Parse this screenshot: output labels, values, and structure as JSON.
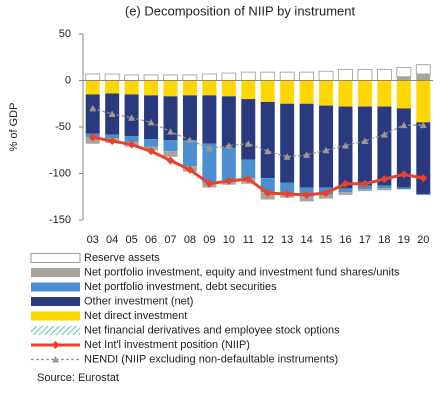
{
  "chart_data": {
    "type": "bar",
    "title": "(e) Decomposition of NIIP by instrument",
    "y_label": "% of GDP",
    "source": "Source: Eurostat",
    "categories": [
      "03",
      "04",
      "05",
      "06",
      "07",
      "08",
      "09",
      "10",
      "11",
      "12",
      "13",
      "14",
      "15",
      "16",
      "17",
      "18",
      "19",
      "20"
    ],
    "ylim": [
      -150,
      50
    ],
    "yticks": [
      -150,
      -100,
      -50,
      0,
      50
    ],
    "series": [
      {
        "name": "Reserve assets",
        "color": "#ffffff",
        "values": [
          7,
          7,
          6,
          6,
          6,
          6,
          7,
          8,
          9,
          9,
          9,
          9,
          10,
          12,
          12,
          12,
          10,
          10
        ]
      },
      {
        "name": "Net portfolio investment, equity and investment fund shares/units",
        "color": "#a8a39d",
        "values": [
          -7,
          -5,
          -5,
          -4,
          -6,
          -6,
          -5,
          -5,
          -6,
          -8,
          -4,
          -5,
          -4,
          -3,
          -2,
          -2,
          4,
          7
        ]
      },
      {
        "name": "Net portfolio investment, debt securities",
        "color": "#4a90d0",
        "values": [
          -4,
          -4,
          -6,
          -8,
          -12,
          -28,
          -42,
          -35,
          -20,
          -15,
          -12,
          -10,
          -8,
          -4,
          -4,
          -3,
          -2,
          -1
        ]
      },
      {
        "name": "Other investment (net)",
        "color": "#2b3a7e",
        "values": [
          -42,
          -44,
          -45,
          -47,
          -47,
          -48,
          -52,
          -55,
          -65,
          -82,
          -85,
          -90,
          -88,
          -88,
          -85,
          -85,
          -85,
          -77
        ]
      },
      {
        "name": "Net direct investment",
        "color": "#ffd700",
        "values": [
          -15,
          -14,
          -15,
          -16,
          -17,
          -16,
          -16,
          -17,
          -20,
          -23,
          -25,
          -25,
          -27,
          -28,
          -28,
          -28,
          -30,
          -45
        ]
      },
      {
        "name": "Net financial derivatives and employee stock options",
        "color": "#7fd4c4",
        "pattern": "hatch",
        "values": [
          0,
          0,
          0,
          0,
          0,
          0,
          0,
          0,
          0,
          0,
          0,
          0,
          0,
          0,
          0,
          0,
          0,
          0
        ]
      },
      {
        "name": "Net Int'l investment position (NIIP)",
        "color": "#e8412c",
        "style": "line",
        "marker": "diamond",
        "values": [
          -61,
          -65,
          -69,
          -76,
          -86,
          -96,
          -111,
          -108,
          -106,
          -121,
          -122,
          -123,
          -121,
          -111,
          -111,
          -106,
          -101,
          -105
        ]
      },
      {
        "name": "NENDI (NIIP excluding non-defaultable instruments)",
        "color": "#a09890",
        "style": "line",
        "marker": "triangle",
        "dashed": true,
        "values": [
          -30,
          -36,
          -40,
          -45,
          -55,
          -64,
          -73,
          -70,
          -68,
          -76,
          -82,
          -80,
          -75,
          -70,
          -65,
          -58,
          -48,
          -48
        ]
      }
    ]
  }
}
